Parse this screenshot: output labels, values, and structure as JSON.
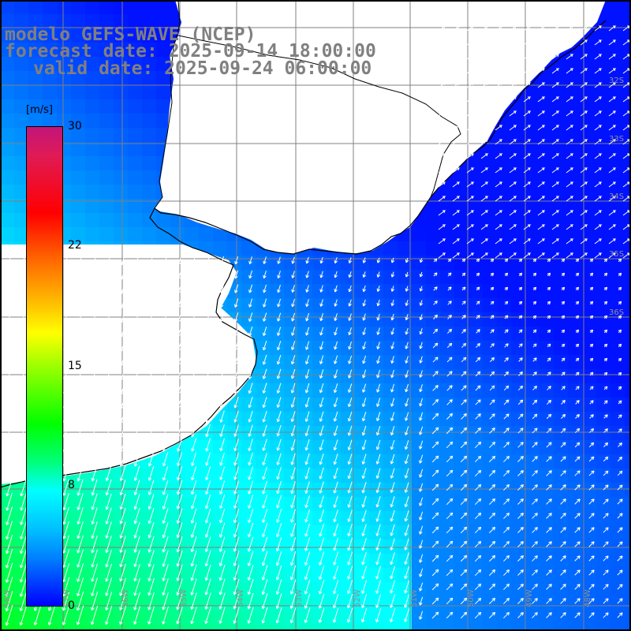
{
  "header": {
    "line1": "modelo GEFS-WAVE (NCEP)",
    "line2": "forecast date: 2025-09-14 18:00:00",
    "line3": "valid date: 2025-09-24 06:00:00"
  },
  "colorbar": {
    "unit": "[m/s]",
    "ticks": [
      "30",
      "22",
      "15",
      "8",
      "0"
    ],
    "tick_values": [
      30,
      22,
      15,
      8,
      0
    ],
    "range": [
      0,
      30
    ]
  },
  "colors": {
    "land": "#ffffff",
    "grid": "#808080",
    "coast": "#000000",
    "arrows": "#ffffff",
    "title": "#808080"
  },
  "map": {
    "field": "wind speed with direction arrows",
    "lat_labels": [
      "32S",
      "33S",
      "34S",
      "35S",
      "36S"
    ],
    "lon_labels": [
      "58W",
      "57W",
      "56W",
      "55W",
      "54W",
      "53W",
      "52W",
      "51W",
      "50W",
      "49W",
      "48W"
    ]
  }
}
